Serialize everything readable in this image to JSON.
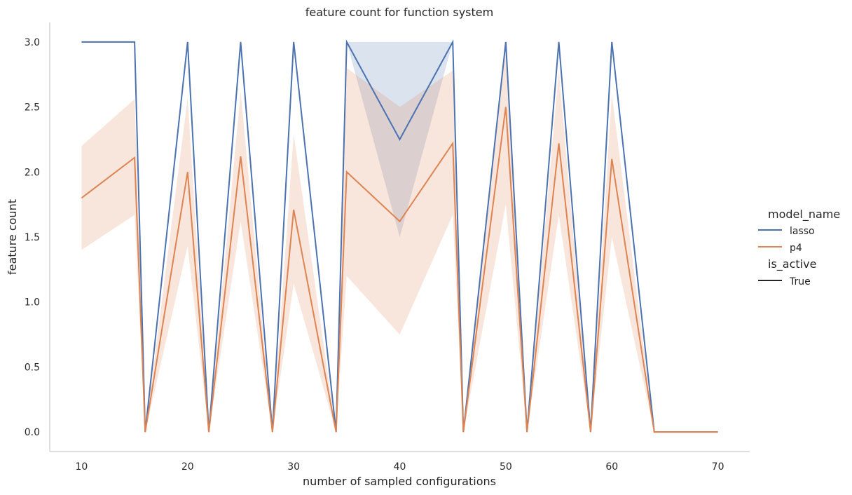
{
  "chart_data": {
    "type": "line",
    "title": "feature count for function system",
    "xlabel": "number of sampled configurations",
    "ylabel": "feature count",
    "xlim": [
      7,
      73
    ],
    "ylim": [
      -0.15,
      3.15
    ],
    "xticks": [
      10,
      20,
      30,
      40,
      50,
      60,
      70
    ],
    "yticks": [
      0.0,
      0.5,
      1.0,
      1.5,
      2.0,
      2.5,
      3.0
    ],
    "xtick_labels": [
      "10",
      "20",
      "30",
      "40",
      "50",
      "60",
      "70"
    ],
    "ytick_labels": [
      "0.0",
      "0.5",
      "1.0",
      "1.5",
      "2.0",
      "2.5",
      "3.0"
    ],
    "grid": false,
    "legend": {
      "placement": "right",
      "hue_title": "model_name",
      "style_title": "is_active",
      "style_entries": [
        "True"
      ]
    },
    "x": [
      10,
      15,
      16,
      20,
      22,
      25,
      28,
      30,
      34,
      35,
      40,
      45,
      46,
      50,
      52,
      55,
      58,
      60,
      64,
      70
    ],
    "series": [
      {
        "name": "lasso",
        "color": "#4c72b0",
        "values": [
          3.0,
          3.0,
          0.0,
          3.0,
          0.0,
          3.0,
          0.0,
          3.0,
          0.0,
          3.0,
          2.25,
          3.0,
          0.0,
          3.0,
          0.0,
          3.0,
          0.0,
          3.0,
          0.0,
          0.0
        ],
        "ci_lower": [
          3.0,
          3.0,
          0.0,
          3.0,
          0.0,
          3.0,
          0.0,
          3.0,
          0.0,
          3.0,
          1.5,
          3.0,
          0.0,
          3.0,
          0.0,
          3.0,
          0.0,
          3.0,
          0.0,
          0.0
        ],
        "ci_upper": [
          3.0,
          3.0,
          0.0,
          3.0,
          0.0,
          3.0,
          0.0,
          3.0,
          0.0,
          3.0,
          3.0,
          3.0,
          0.0,
          3.0,
          0.0,
          3.0,
          0.0,
          3.0,
          0.0,
          0.0
        ]
      },
      {
        "name": "p4",
        "color": "#dd8452",
        "values": [
          1.8,
          2.11,
          0.0,
          2.0,
          0.0,
          2.12,
          0.0,
          1.71,
          0.0,
          2.0,
          1.62,
          2.22,
          0.0,
          2.5,
          0.0,
          2.22,
          0.0,
          2.1,
          0.0,
          0.0
        ],
        "ci_lower": [
          1.4,
          1.67,
          0.0,
          1.43,
          0.0,
          1.62,
          0.0,
          1.14,
          0.0,
          1.2,
          0.75,
          1.67,
          0.0,
          1.75,
          0.0,
          1.67,
          0.0,
          1.5,
          0.0,
          0.0
        ],
        "ci_upper": [
          2.2,
          2.56,
          0.0,
          2.57,
          0.0,
          2.62,
          0.0,
          2.29,
          0.0,
          2.8,
          2.5,
          2.78,
          0.0,
          3.0,
          0.0,
          2.78,
          0.0,
          2.6,
          0.0,
          0.0
        ]
      }
    ]
  }
}
